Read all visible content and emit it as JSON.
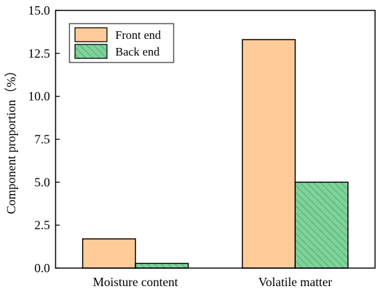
{
  "chart_data": {
    "type": "bar",
    "title": "",
    "xlabel": "",
    "ylabel": "Component proportion（%）",
    "categories": [
      "Moisture content",
      "Volatile matter"
    ],
    "series": [
      {
        "name": "Front end",
        "values": [
          1.7,
          13.3
        ],
        "color": "#FFCC99",
        "pattern": "none"
      },
      {
        "name": "Back end",
        "values": [
          0.27,
          5.0
        ],
        "color": "#7FD39A",
        "pattern": "diagonal-hatch"
      }
    ],
    "ylim": [
      0,
      15
    ],
    "yticks": [
      "0.0",
      "2.5",
      "5.0",
      "7.5",
      "10.0",
      "12.5",
      "15.0"
    ],
    "grid": false,
    "legend_position": "top-left",
    "colors": {
      "axis": "#000000",
      "bar_edge": "#000000",
      "hatch": "#2e8b57"
    }
  }
}
